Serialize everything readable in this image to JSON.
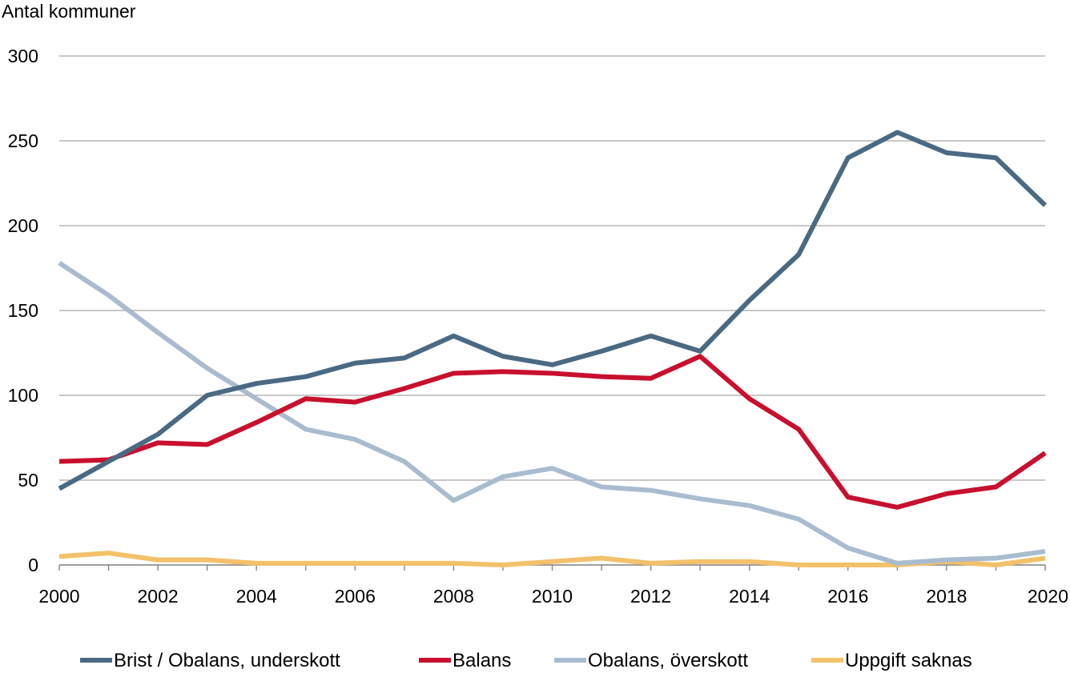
{
  "chart_data": {
    "type": "line",
    "title": "",
    "xlabel": "",
    "ylabel": "Antal kommuner",
    "xlim": [
      2000,
      2020
    ],
    "ylim": [
      0,
      300
    ],
    "x_ticks": [
      2000,
      2002,
      2004,
      2006,
      2008,
      2010,
      2012,
      2014,
      2016,
      2018,
      2020
    ],
    "y_ticks": [
      0,
      50,
      100,
      150,
      200,
      250,
      300
    ],
    "grid": "horizontal",
    "legend_position": "bottom",
    "x": [
      2000,
      2001,
      2002,
      2003,
      2004,
      2005,
      2006,
      2007,
      2008,
      2009,
      2010,
      2011,
      2012,
      2013,
      2014,
      2015,
      2016,
      2017,
      2018,
      2019,
      2020
    ],
    "series": [
      {
        "name": "Brist / Obalans, underskott",
        "color": "#4a6a83",
        "values": [
          45,
          61,
          77,
          100,
          107,
          111,
          119,
          122,
          135,
          123,
          118,
          126,
          135,
          126,
          156,
          183,
          240,
          255,
          243,
          240,
          212
        ]
      },
      {
        "name": "Balans",
        "color": "#c8102e",
        "values": [
          61,
          62,
          72,
          71,
          84,
          98,
          96,
          104,
          113,
          114,
          113,
          111,
          110,
          123,
          98,
          80,
          40,
          34,
          42,
          46,
          66
        ]
      },
      {
        "name": "Obalans, överskott",
        "color": "#a9bccf",
        "values": [
          178,
          159,
          137,
          116,
          98,
          80,
          74,
          61,
          38,
          52,
          57,
          46,
          44,
          39,
          35,
          27,
          10,
          1,
          3,
          4,
          8
        ]
      },
      {
        "name": "Uppgift saknas",
        "color": "#f3c16a",
        "values": [
          5,
          7,
          3,
          3,
          1,
          1,
          1,
          1,
          1,
          0,
          2,
          4,
          1,
          2,
          2,
          0,
          0,
          0,
          2,
          0,
          4
        ]
      }
    ]
  }
}
